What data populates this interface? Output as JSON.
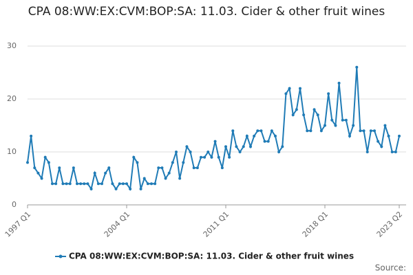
{
  "chart_data": {
    "type": "line",
    "title": "CPA 08:WW:EX:CVM:BOP:SA: 11.03. Cider & other fruit wines",
    "categories": [
      "1997 Q1",
      null,
      null,
      null,
      null,
      null,
      null,
      null,
      null,
      null,
      null,
      null,
      null,
      null,
      null,
      null,
      null,
      null,
      null,
      null,
      null,
      null,
      null,
      null,
      null,
      null,
      null,
      null,
      "2004 Q1",
      null,
      null,
      null,
      null,
      null,
      null,
      null,
      null,
      null,
      null,
      null,
      null,
      null,
      null,
      null,
      null,
      null,
      null,
      null,
      null,
      null,
      null,
      null,
      null,
      null,
      null,
      null,
      "2011 Q1",
      null,
      null,
      null,
      null,
      null,
      null,
      null,
      null,
      null,
      null,
      null,
      null,
      null,
      null,
      null,
      null,
      null,
      null,
      null,
      null,
      null,
      null,
      null,
      null,
      null,
      null,
      null,
      "2018 Q1",
      null,
      null,
      null,
      null,
      null,
      null,
      null,
      null,
      null,
      null,
      null,
      null,
      null,
      null,
      null,
      null,
      null,
      null,
      null,
      null,
      "2023 Q2"
    ],
    "series": [
      {
        "name": "CPA 08:WW:EX:CVM:BOP:SA: 11.03. Cider & other fruit wines",
        "color": "#1f7bb6",
        "values": [
          8,
          13,
          7,
          6,
          5,
          9,
          8,
          4,
          4,
          7,
          4,
          4,
          4,
          7,
          4,
          4,
          4,
          4,
          3,
          6,
          4,
          4,
          6,
          7,
          4,
          3,
          4,
          4,
          4,
          3,
          9,
          8,
          3,
          5,
          4,
          4,
          4,
          7,
          7,
          5,
          6,
          8,
          10,
          5,
          8,
          11,
          10,
          7,
          7,
          9,
          9,
          10,
          9,
          12,
          9,
          7,
          11,
          9,
          14,
          11,
          10,
          11,
          13,
          11,
          13,
          14,
          14,
          12,
          12,
          14,
          13,
          10,
          11,
          21,
          22,
          17,
          18,
          22,
          17,
          14,
          14,
          18,
          17,
          14,
          15,
          21,
          16,
          15,
          23,
          16,
          16,
          13,
          15,
          26,
          14,
          14,
          10,
          14,
          14,
          12,
          11,
          15,
          13,
          10,
          10,
          13
        ]
      }
    ],
    "ylim": [
      0,
      30
    ],
    "yticks": [
      0,
      10,
      20,
      30
    ],
    "grid": true,
    "source": "Source:"
  }
}
